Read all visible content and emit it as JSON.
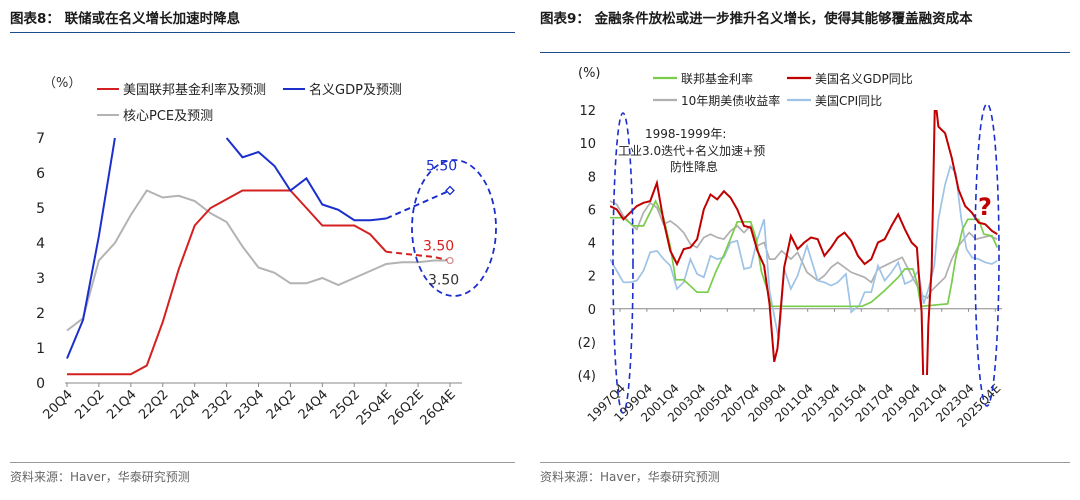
{
  "left": {
    "title": "图表8： 联储或在名义增长加速时降息",
    "source": "资料来源：Haver，华泰研究预测",
    "unit": "（%）",
    "chart_data": {
      "type": "line",
      "categories": [
        "20Q4",
        "21Q1",
        "21Q2",
        "21Q3",
        "21Q4",
        "22Q1",
        "22Q2",
        "22Q3",
        "22Q4",
        "23Q1",
        "23Q2",
        "23Q3",
        "23Q4",
        "24Q1",
        "24Q2",
        "24Q3",
        "24Q4",
        "25Q1",
        "25Q2",
        "25Q3",
        "25Q4E",
        "26Q1E",
        "26Q2E",
        "26Q3E",
        "26Q4E"
      ],
      "tick_labels": [
        "20Q4",
        "21Q2",
        "21Q4",
        "22Q2",
        "22Q4",
        "23Q2",
        "23Q4",
        "24Q2",
        "24Q4",
        "25Q2",
        "25Q4E",
        "26Q2E",
        "26Q4E"
      ],
      "ylim": [
        0,
        7
      ],
      "yticks": [
        0,
        1,
        2,
        3,
        4,
        5,
        6,
        7
      ],
      "series": [
        {
          "name": "美国联邦基金利率及预测",
          "color": "#d42020",
          "values": [
            0.25,
            0.25,
            0.25,
            0.25,
            0.25,
            0.5,
            1.75,
            3.25,
            4.5,
            5.0,
            5.25,
            5.5,
            5.5,
            5.5,
            5.5,
            5.0,
            4.5,
            4.5,
            4.5,
            4.25,
            3.75,
            null,
            null,
            null,
            null
          ],
          "forecast": [
            null,
            null,
            null,
            null,
            null,
            null,
            null,
            null,
            null,
            null,
            null,
            null,
            null,
            null,
            null,
            null,
            null,
            null,
            null,
            null,
            3.75,
            3.7,
            3.65,
            3.6,
            3.5
          ]
        },
        {
          "name": "名义GDP及预测",
          "color": "#1a2fcc",
          "values": [
            0.7,
            1.8,
            4.2,
            7.0,
            null,
            null,
            null,
            null,
            null,
            null,
            7.0,
            6.45,
            6.6,
            6.2,
            5.5,
            5.85,
            5.1,
            4.95,
            4.65,
            4.65,
            4.7,
            null,
            null,
            null,
            null
          ],
          "forecast": [
            null,
            null,
            null,
            null,
            null,
            null,
            null,
            null,
            null,
            null,
            null,
            null,
            null,
            null,
            null,
            null,
            null,
            null,
            null,
            null,
            4.7,
            4.9,
            5.1,
            5.3,
            5.5
          ]
        },
        {
          "name": "核心PCE及预测",
          "color": "#b3b3b3",
          "values": [
            1.5,
            1.85,
            3.5,
            4.0,
            4.8,
            5.5,
            5.3,
            5.35,
            5.2,
            4.85,
            4.6,
            3.9,
            3.3,
            3.15,
            2.85,
            2.85,
            3.0,
            2.8,
            3.0,
            3.2,
            3.4,
            3.45,
            3.45,
            3.5,
            3.5
          ],
          "forecast": []
        }
      ],
      "annotations": [
        {
          "text": "5.50",
          "series": "名义GDP及预测",
          "color": "#1a2fcc"
        },
        {
          "text": "3.50",
          "series": "美国联邦基金利率及预测",
          "color": "#d42020"
        },
        {
          "text": "3.50",
          "series": "核心PCE及预测",
          "color": "#333333"
        }
      ]
    }
  },
  "right": {
    "title": "图表9： 金融条件放松或进一步推升名义增长，使得其能够覆盖融资成本",
    "source": "资料来源：Haver，华泰研究预测",
    "unit": "(%)",
    "annotation": "1998-1999年:\n工业3.0迭代+名义加速+预\n防性降息",
    "question": "?",
    "chart_data": {
      "type": "line",
      "x_range": [
        "1997Q1",
        "2025Q4"
      ],
      "tick_labels": [
        "1997Q4",
        "1999Q4",
        "2001Q4",
        "2003Q4",
        "2005Q4",
        "2007Q4",
        "2009Q4",
        "2011Q4",
        "2013Q4",
        "2015Q4",
        "2017Q4",
        "2019Q4",
        "2021Q4",
        "2023Q4",
        "2025Q4E"
      ],
      "ylim": [
        -4,
        12
      ],
      "yticks": [
        "(4)",
        "(2)",
        "0",
        "2",
        "4",
        "6",
        "8",
        "10",
        "12"
      ],
      "series": [
        {
          "name": "联邦基金利率",
          "color": "#7acc4b",
          "t": [
            1997.0,
            1998.0,
            1998.75,
            1999.5,
            2000.4,
            2001.0,
            2001.5,
            2001.9,
            2002.5,
            2003.5,
            2004.3,
            2004.9,
            2005.5,
            2006.0,
            2006.5,
            2007.5,
            2007.9,
            2008.3,
            2008.8,
            2009.0,
            2015.8,
            2016.5,
            2017.5,
            2018.5,
            2019.0,
            2019.6,
            2019.9,
            2020.2,
            2022.2,
            2022.5,
            2022.8,
            2023.3,
            2023.7,
            2024.5,
            2024.9,
            2025.5,
            2025.9
          ],
          "values": [
            5.5,
            5.5,
            5.0,
            5.0,
            6.5,
            5.5,
            3.75,
            1.75,
            1.75,
            1.0,
            1.0,
            2.25,
            3.25,
            4.25,
            5.25,
            5.25,
            4.25,
            2.25,
            1.0,
            0.15,
            0.15,
            0.4,
            1.1,
            1.9,
            2.4,
            2.4,
            1.6,
            0.15,
            0.3,
            1.6,
            3.1,
            4.8,
            5.4,
            5.4,
            4.5,
            4.4,
            3.7
          ]
        },
        {
          "name": "美国名义GDP同比",
          "color": "#c00000",
          "t": [
            1997.0,
            1997.5,
            1998.0,
            1998.5,
            1999.0,
            1999.5,
            2000.0,
            2000.5,
            2001.0,
            2001.5,
            2002.0,
            2002.5,
            2003.0,
            2003.5,
            2004.0,
            2004.5,
            2005.0,
            2005.5,
            2006.0,
            2006.5,
            2007.0,
            2007.5,
            2008.0,
            2008.5,
            2008.9,
            2009.25,
            2009.5,
            2010.0,
            2010.5,
            2011.0,
            2011.5,
            2012.0,
            2012.5,
            2013.0,
            2013.5,
            2014.0,
            2014.5,
            2015.0,
            2015.5,
            2016.0,
            2016.5,
            2017.0,
            2017.5,
            2018.0,
            2018.5,
            2019.0,
            2019.5,
            2019.9,
            2020.25,
            2020.5,
            2020.75,
            2021.0,
            2021.25,
            2021.5,
            2022.0,
            2022.5,
            2023.0,
            2023.5,
            2024.0,
            2024.5,
            2025.0,
            2025.5,
            2025.9
          ],
          "values": [
            6.2,
            6.0,
            5.4,
            5.8,
            6.2,
            6.4,
            6.5,
            7.6,
            5.3,
            3.5,
            2.7,
            3.6,
            3.7,
            4.2,
            6.0,
            6.9,
            6.6,
            7.1,
            6.7,
            6.0,
            5.0,
            4.9,
            3.5,
            2.6,
            0.3,
            -3.2,
            -2.4,
            2.5,
            4.4,
            3.6,
            4.0,
            4.3,
            4.2,
            3.2,
            3.7,
            4.3,
            4.6,
            4.1,
            3.2,
            2.7,
            3.0,
            4.0,
            4.2,
            5.0,
            5.7,
            4.8,
            4.0,
            3.7,
            -0.2,
            -8.5,
            -1.0,
            2.5,
            12.8,
            11.0,
            10.6,
            9.1,
            7.2,
            6.2,
            5.8,
            5.2,
            5.1,
            4.7,
            4.5
          ]
        },
        {
          "name": "10年期美债收益率",
          "color": "#b0b0b0",
          "t": [
            1997.0,
            1997.5,
            1998.0,
            1998.7,
            1999.0,
            1999.5,
            2000.0,
            2000.5,
            2001.0,
            2001.5,
            2002.0,
            2002.5,
            2003.0,
            2003.5,
            2004.0,
            2004.5,
            2005.0,
            2005.5,
            2006.0,
            2006.5,
            2007.0,
            2007.5,
            2008.0,
            2008.5,
            2008.9,
            2009.3,
            2009.8,
            2010.5,
            2011.0,
            2011.7,
            2012.5,
            2013.0,
            2013.5,
            2014.0,
            2015.0,
            2016.0,
            2016.5,
            2017.0,
            2018.0,
            2018.8,
            2019.5,
            2020.3,
            2020.7,
            2021.0,
            2021.5,
            2022.0,
            2022.5,
            2023.0,
            2023.8,
            2024.3,
            2024.8,
            2025.3,
            2025.9
          ],
          "values": [
            6.5,
            6.3,
            5.6,
            5.0,
            4.8,
            5.8,
            6.4,
            6.1,
            5.1,
            5.3,
            5.0,
            4.6,
            3.9,
            3.7,
            4.3,
            4.5,
            4.3,
            4.2,
            4.7,
            5.0,
            4.6,
            5.0,
            3.8,
            4.0,
            3.0,
            3.0,
            3.5,
            3.0,
            3.4,
            2.2,
            1.7,
            2.0,
            2.5,
            2.8,
            2.2,
            1.9,
            1.6,
            2.4,
            2.8,
            3.1,
            2.0,
            0.8,
            0.65,
            1.1,
            1.5,
            1.9,
            3.0,
            3.8,
            4.6,
            4.2,
            4.3,
            4.4,
            4.2
          ]
        },
        {
          "name": "美国CPI同比",
          "color": "#9ec3e6",
          "t": [
            1997.0,
            1997.5,
            1998.0,
            1998.5,
            1999.0,
            1999.5,
            2000.0,
            2000.5,
            2001.0,
            2001.5,
            2002.0,
            2002.5,
            2003.0,
            2003.5,
            2004.0,
            2004.5,
            2005.0,
            2005.5,
            2006.0,
            2006.5,
            2007.0,
            2007.5,
            2008.0,
            2008.5,
            2008.9,
            2009.3,
            2009.6,
            2010.0,
            2010.5,
            2011.0,
            2011.7,
            2012.5,
            2013.0,
            2013.5,
            2014.0,
            2014.6,
            2015.0,
            2015.6,
            2016.0,
            2016.5,
            2017.0,
            2017.5,
            2018.0,
            2018.5,
            2019.0,
            2019.5,
            2020.0,
            2020.4,
            2020.8,
            2021.2,
            2021.5,
            2022.0,
            2022.4,
            2022.8,
            2023.2,
            2023.6,
            2024.0,
            2024.5,
            2025.0,
            2025.5,
            2025.9
          ],
          "values": [
            3.0,
            2.3,
            1.6,
            1.6,
            1.7,
            2.3,
            3.4,
            3.5,
            3.0,
            2.6,
            1.2,
            1.6,
            3.0,
            2.1,
            1.9,
            3.2,
            3.0,
            3.1,
            4.0,
            4.1,
            2.4,
            2.5,
            4.2,
            5.4,
            1.1,
            -0.6,
            -1.9,
            2.4,
            1.2,
            2.0,
            3.8,
            1.7,
            1.6,
            1.4,
            1.6,
            2.1,
            -0.2,
            0.2,
            1.0,
            1.0,
            2.6,
            1.7,
            2.2,
            2.8,
            1.5,
            1.7,
            2.3,
            0.3,
            1.3,
            2.6,
            5.4,
            7.5,
            8.6,
            8.2,
            5.5,
            3.6,
            3.1,
            3.0,
            2.8,
            2.7,
            2.9
          ]
        }
      ]
    }
  }
}
